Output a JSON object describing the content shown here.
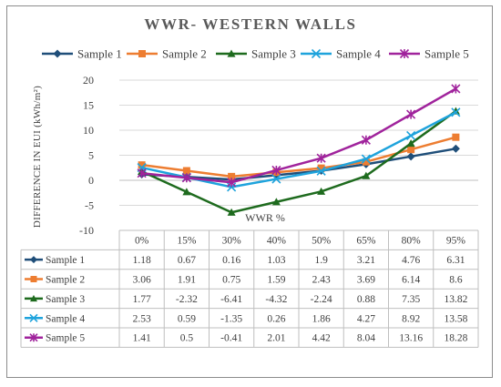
{
  "chart_data": {
    "type": "line",
    "title": "WWR- WESTERN WALLS",
    "xlabel": "WWR %",
    "ylabel": "DIFFERENCE IN EUI (kWh/m²)",
    "ylim": [
      -10,
      20
    ],
    "yticks": [
      -10,
      -5,
      0,
      5,
      10,
      15,
      20
    ],
    "grid": true,
    "legend_position": "top",
    "categories": [
      "0%",
      "15%",
      "30%",
      "40%",
      "50%",
      "65%",
      "80%",
      "95%"
    ],
    "series": [
      {
        "name": "Sample 1",
        "color": "#1f4e79",
        "marker": "diamond",
        "values": [
          1.18,
          0.67,
          0.16,
          1.03,
          1.9,
          3.21,
          4.76,
          6.31
        ],
        "labels": [
          "1.18",
          "0.67",
          "0.16",
          "1.03",
          "1.9",
          "3.21",
          "4.76",
          "6.31"
        ]
      },
      {
        "name": "Sample 2",
        "color": "#ed7d31",
        "marker": "square",
        "values": [
          3.06,
          1.91,
          0.75,
          1.59,
          2.43,
          3.69,
          6.14,
          8.6
        ],
        "labels": [
          "3.06",
          "1.91",
          "0.75",
          "1.59",
          "2.43",
          "3.69",
          "6.14",
          "8.6"
        ]
      },
      {
        "name": "Sample 3",
        "color": "#1e6b1e",
        "marker": "triangle",
        "values": [
          1.77,
          -2.32,
          -6.41,
          -4.32,
          -2.24,
          0.88,
          7.35,
          13.82
        ],
        "labels": [
          "1.77",
          "-2.32",
          "-6.41",
          "-4.32",
          "-2.24",
          "0.88",
          "7.35",
          "13.82"
        ]
      },
      {
        "name": "Sample 4",
        "color": "#1ea3dc",
        "marker": "x",
        "values": [
          2.53,
          0.59,
          -1.35,
          0.26,
          1.86,
          4.27,
          8.92,
          13.58
        ],
        "labels": [
          "2.53",
          "0.59",
          "-1.35",
          "0.26",
          "1.86",
          "4.27",
          "8.92",
          "13.58"
        ]
      },
      {
        "name": "Sample 5",
        "color": "#a0239c",
        "marker": "star",
        "values": [
          1.41,
          0.5,
          -0.41,
          2.01,
          4.42,
          8.04,
          13.16,
          18.28
        ],
        "labels": [
          "1.41",
          "0.5",
          "-0.41",
          "2.01",
          "4.42",
          "8.04",
          "13.16",
          "18.28"
        ]
      }
    ]
  }
}
